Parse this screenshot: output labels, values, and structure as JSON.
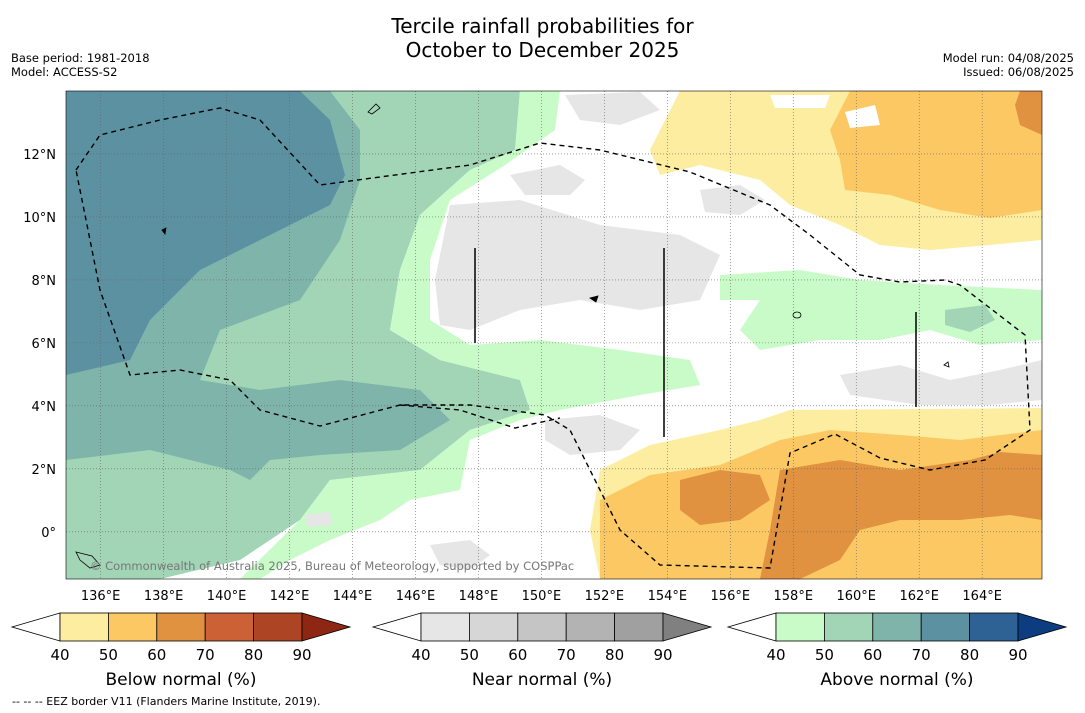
{
  "title": {
    "line1": "Tercile rainfall probabilities for",
    "line2": "October to December 2025"
  },
  "meta": {
    "base_period": "Base period: 1981-2018",
    "model": "Model: ACCESS-S2",
    "model_run": "Model run: 04/08/2025",
    "issued": "Issued: 06/08/2025"
  },
  "axes": {
    "lon_labels": [
      "136°E",
      "138°E",
      "140°E",
      "142°E",
      "144°E",
      "146°E",
      "148°E",
      "150°E",
      "152°E",
      "154°E",
      "156°E",
      "158°E",
      "160°E",
      "162°E",
      "164°E"
    ],
    "lat_labels": [
      "12°N",
      "10°N",
      "8°N",
      "6°N",
      "4°N",
      "2°N",
      "0°"
    ],
    "lon_range": [
      134.9,
      165.9
    ],
    "lat_range": [
      -1.5,
      14.0
    ]
  },
  "copyright": "© Commonwealth of Australia 2025, Bureau of Meteorology, supported by COSPPac",
  "legends": [
    {
      "id": "below",
      "label": "Below normal (%)",
      "ticks": [
        "40",
        "50",
        "60",
        "70",
        "80",
        "90"
      ],
      "colors": [
        "#ffffff",
        "#fdeda0",
        "#fcc863",
        "#e09240",
        "#cc6135",
        "#ad4424",
        "#8d2612"
      ]
    },
    {
      "id": "near",
      "label": "Near normal (%)",
      "ticks": [
        "40",
        "50",
        "60",
        "70",
        "80",
        "90"
      ],
      "colors": [
        "#ffffff",
        "#e6e6e6",
        "#d6d6d6",
        "#c5c5c5",
        "#b3b3b3",
        "#a0a0a0",
        "#808080"
      ]
    },
    {
      "id": "above",
      "label": "Above normal (%)",
      "ticks": [
        "40",
        "50",
        "60",
        "70",
        "80",
        "90"
      ],
      "colors": [
        "#ffffff",
        "#c9fbc9",
        "#a1d5b6",
        "#7fb4ab",
        "#5b91a1",
        "#2e6194",
        "#0d3d80"
      ]
    }
  ],
  "footer": "--  --  -- EEZ border V11 (Flanders Marine Institute, 2019)."
}
